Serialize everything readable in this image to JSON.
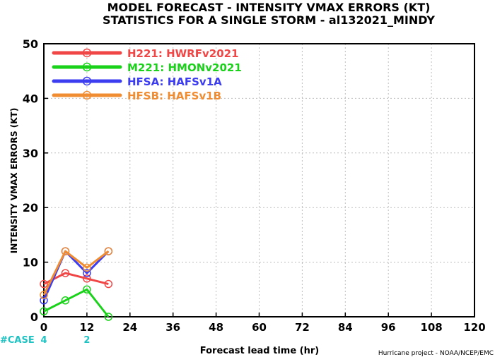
{
  "chart_data": {
    "type": "line",
    "title_line1": "MODEL FORECAST - INTENSITY VMAX ERRORS (KT)",
    "title_line2": "STATISTICS FOR A SINGLE STORM - al132021_MINDY",
    "xlabel": "Forecast lead time (hr)",
    "ylabel": "INTENSITY VMAX ERRORS (KT)",
    "credit": "Hurricane project - NOAA/NCEP/EMC",
    "xlim": [
      0,
      120
    ],
    "ylim": [
      0,
      50
    ],
    "x_ticks": [
      "0",
      "12",
      "24",
      "36",
      "48",
      "60",
      "72",
      "84",
      "96",
      "108",
      "120"
    ],
    "y_ticks": [
      "0",
      "10",
      "20",
      "30",
      "40",
      "50"
    ],
    "grid": true,
    "legend_position": "top-left",
    "case_label": "#CASE",
    "case_counts": [
      {
        "x": 0,
        "label": "4"
      },
      {
        "x": 12,
        "label": "2"
      }
    ],
    "series": [
      {
        "code": "H221:",
        "name": "HWRFv2021",
        "color": "#f04646",
        "x": [
          0,
          6,
          12,
          18
        ],
        "values": [
          6,
          8,
          7,
          6
        ]
      },
      {
        "code": "M221:",
        "name": "HMONv2021",
        "color": "#19d219",
        "x": [
          0,
          6,
          12,
          18
        ],
        "values": [
          1,
          3,
          5,
          0
        ]
      },
      {
        "code": "HFSA:",
        "name": "HAFSv1A",
        "color": "#3c3cf0",
        "x": [
          0,
          6,
          12,
          18
        ],
        "values": [
          3,
          12,
          8,
          12
        ]
      },
      {
        "code": "HFSB:",
        "name": "HAFSv1B",
        "color": "#f08c32",
        "x": [
          0,
          6,
          12,
          18
        ],
        "values": [
          4,
          12,
          9,
          12
        ]
      }
    ]
  }
}
